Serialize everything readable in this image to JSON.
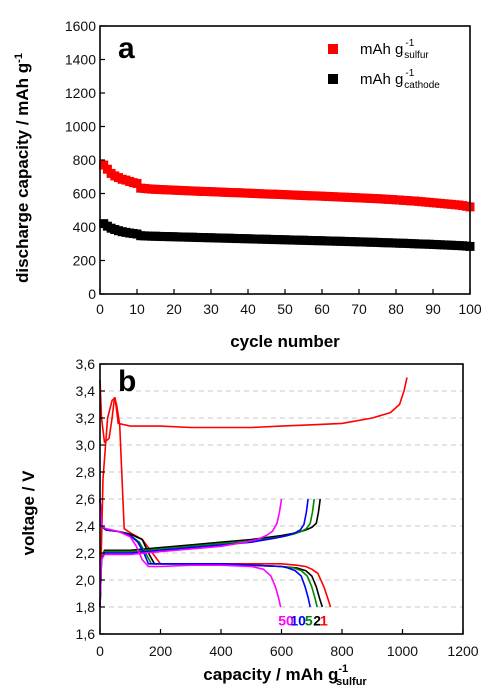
{
  "chart_data": [
    {
      "type": "scatter",
      "panel_label": "a",
      "xlabel": "cycle number",
      "ylabel": "discharge capacity / mAh g",
      "ylabel_sup": "-1",
      "xlim": [
        0,
        100
      ],
      "ylim": [
        0,
        1600
      ],
      "xticks": [
        "0",
        "10",
        "20",
        "30",
        "40",
        "50",
        "60",
        "70",
        "80",
        "90",
        "100"
      ],
      "yticks": [
        "0",
        "200",
        "400",
        "600",
        "800",
        "1000",
        "1200",
        "1400",
        "1600"
      ],
      "legend_position": "top-right",
      "series": [
        {
          "name_main": "mAh g",
          "name_sup": "-1",
          "name_sub": "sulfur",
          "color": "#ff0000",
          "x": [
            1,
            2,
            3,
            4,
            5,
            6,
            7,
            8,
            9,
            10,
            11,
            12,
            13,
            14,
            15,
            16,
            17,
            18,
            19,
            20,
            21,
            22,
            23,
            24,
            25,
            26,
            27,
            28,
            29,
            30,
            31,
            32,
            33,
            34,
            35,
            36,
            37,
            38,
            39,
            40,
            41,
            42,
            43,
            44,
            45,
            46,
            47,
            48,
            49,
            50,
            51,
            52,
            53,
            54,
            55,
            56,
            57,
            58,
            59,
            60,
            61,
            62,
            63,
            64,
            65,
            66,
            67,
            68,
            69,
            70,
            71,
            72,
            73,
            74,
            75,
            76,
            77,
            78,
            79,
            80,
            81,
            82,
            83,
            84,
            85,
            86,
            87,
            88,
            89,
            90,
            91,
            92,
            93,
            94,
            95,
            96,
            97,
            98,
            99,
            100
          ],
          "values": [
            770,
            745,
            720,
            705,
            695,
            685,
            680,
            672,
            665,
            660,
            632,
            630,
            628,
            626,
            625,
            624,
            623,
            622,
            621,
            620,
            619,
            618,
            617,
            616,
            615,
            614,
            613,
            612,
            612,
            611,
            610,
            609,
            608,
            607,
            606,
            605,
            605,
            604,
            603,
            602,
            601,
            600,
            599,
            598,
            597,
            596,
            596,
            595,
            594,
            593,
            592,
            591,
            590,
            589,
            588,
            587,
            586,
            586,
            585,
            584,
            583,
            582,
            581,
            580,
            579,
            578,
            577,
            576,
            575,
            574,
            573,
            572,
            571,
            570,
            569,
            568,
            566,
            565,
            564,
            562,
            561,
            559,
            558,
            556,
            555,
            553,
            551,
            549,
            547,
            545,
            543,
            541,
            539,
            537,
            535,
            533,
            531,
            528,
            524,
            520
          ]
        },
        {
          "name_main": "mAh g",
          "name_sup": "-1",
          "name_sub": "cathode",
          "color": "#000000",
          "x": [
            1,
            2,
            3,
            4,
            5,
            6,
            7,
            8,
            9,
            10,
            11,
            12,
            13,
            14,
            15,
            16,
            17,
            18,
            19,
            20,
            21,
            22,
            23,
            24,
            25,
            26,
            27,
            28,
            29,
            30,
            31,
            32,
            33,
            34,
            35,
            36,
            37,
            38,
            39,
            40,
            41,
            42,
            43,
            44,
            45,
            46,
            47,
            48,
            49,
            50,
            51,
            52,
            53,
            54,
            55,
            56,
            57,
            58,
            59,
            60,
            61,
            62,
            63,
            64,
            65,
            66,
            67,
            68,
            69,
            70,
            71,
            72,
            73,
            74,
            75,
            76,
            77,
            78,
            79,
            80,
            81,
            82,
            83,
            84,
            85,
            86,
            87,
            88,
            89,
            90,
            91,
            92,
            93,
            94,
            95,
            96,
            97,
            98,
            99,
            100
          ],
          "values": [
            420,
            405,
            393,
            385,
            378,
            372,
            368,
            364,
            361,
            358,
            348,
            347,
            346,
            345,
            345,
            344,
            343,
            343,
            342,
            342,
            341,
            340,
            340,
            339,
            339,
            338,
            337,
            337,
            336,
            336,
            335,
            334,
            334,
            333,
            333,
            332,
            331,
            331,
            330,
            330,
            329,
            328,
            328,
            327,
            327,
            326,
            325,
            325,
            324,
            324,
            323,
            322,
            322,
            321,
            321,
            320,
            319,
            319,
            318,
            318,
            317,
            316,
            316,
            315,
            315,
            314,
            313,
            313,
            312,
            311,
            311,
            310,
            309,
            309,
            308,
            307,
            306,
            306,
            305,
            304,
            303,
            303,
            302,
            301,
            300,
            299,
            298,
            298,
            297,
            296,
            295,
            294,
            293,
            292,
            291,
            290,
            289,
            288,
            286,
            284
          ]
        }
      ]
    },
    {
      "type": "line",
      "panel_label": "b",
      "xlabel": "capacity / mAh g",
      "xlabel_sup": "-1",
      "xlabel_sub": "sulfur",
      "ylabel": "voltage / V",
      "xlim": [
        0,
        1200
      ],
      "ylim": [
        1.6,
        3.6
      ],
      "xticks": [
        "0",
        "200",
        "400",
        "600",
        "800",
        "1000",
        "1200"
      ],
      "yticks": [
        "1,6",
        "1,8",
        "2,0",
        "2,2",
        "2,4",
        "2,6",
        "2,8",
        "3,0",
        "3,2",
        "3,4",
        "3,6"
      ],
      "cycle_labels": [
        {
          "text": "50",
          "color": "#ff00ff",
          "x": 615
        },
        {
          "text": "10",
          "color": "#0000ff",
          "x": 655
        },
        {
          "text": "5",
          "color": "#008800",
          "x": 690
        },
        {
          "text": "2",
          "color": "#000000",
          "x": 718
        },
        {
          "text": "1",
          "color": "#ff0000",
          "x": 740
        }
      ],
      "series": [
        {
          "cycle": "1",
          "color": "#ff0000",
          "discharge": {
            "x": [
              0,
              5,
              15,
              30,
              40,
              48,
              55,
              65,
              80,
              100,
              140,
              200,
              300,
              400,
              500,
              600,
              650,
              680,
              700,
              720,
              740,
              755,
              762
            ],
            "y": [
              3.48,
              3.2,
              3.02,
              3.05,
              3.2,
              3.35,
              3.3,
              3.15,
              2.38,
              2.35,
              2.3,
              2.12,
              2.12,
              2.12,
              2.12,
              2.12,
              2.11,
              2.1,
              2.08,
              2.05,
              1.95,
              1.85,
              1.8
            ]
          },
          "charge": {
            "x": [
              0,
              10,
              25,
              40,
              50,
              60,
              100,
              200,
              300,
              400,
              500,
              600,
              700,
              800,
              900,
              960,
              990,
              1005,
              1015
            ],
            "y": [
              1.8,
              2.75,
              3.2,
              3.33,
              3.35,
              3.16,
              3.14,
              3.14,
              3.13,
              3.13,
              3.13,
              3.14,
              3.15,
              3.16,
              3.2,
              3.24,
              3.3,
              3.4,
              3.5
            ]
          }
        },
        {
          "cycle": "2",
          "color": "#000000",
          "discharge": {
            "x": [
              0,
              5,
              20,
              60,
              100,
              140,
              160,
              180,
              220,
              300,
              400,
              500,
              600,
              650,
              680,
              700,
              715,
              725,
              735
            ],
            "y": [
              2.6,
              2.4,
              2.37,
              2.36,
              2.34,
              2.3,
              2.2,
              2.12,
              2.12,
              2.12,
              2.12,
              2.11,
              2.1,
              2.09,
              2.07,
              2.03,
              1.95,
              1.87,
              1.8
            ]
          },
          "charge": {
            "x": [
              0,
              5,
              15,
              100,
              200,
              300,
              400,
              500,
              600,
              650,
              680,
              700,
              715,
              722,
              728
            ],
            "y": [
              1.8,
              2.15,
              2.22,
              2.22,
              2.24,
              2.26,
              2.28,
              2.3,
              2.33,
              2.35,
              2.37,
              2.39,
              2.42,
              2.5,
              2.6
            ]
          }
        },
        {
          "cycle": "5",
          "color": "#008800",
          "discharge": {
            "x": [
              0,
              5,
              20,
              60,
              100,
              130,
              150,
              170,
              210,
              300,
              400,
              500,
              600,
              640,
              665,
              685,
              700,
              710,
              718
            ],
            "y": [
              2.6,
              2.4,
              2.37,
              2.36,
              2.33,
              2.28,
              2.2,
              2.12,
              2.12,
              2.12,
              2.12,
              2.11,
              2.1,
              2.09,
              2.07,
              2.03,
              1.95,
              1.87,
              1.8
            ]
          },
          "charge": {
            "x": [
              0,
              5,
              15,
              100,
              200,
              300,
              400,
              500,
              600,
              640,
              665,
              682,
              695,
              702,
              708
            ],
            "y": [
              1.8,
              2.15,
              2.21,
              2.21,
              2.23,
              2.25,
              2.27,
              2.29,
              2.32,
              2.34,
              2.36,
              2.38,
              2.42,
              2.5,
              2.6
            ]
          }
        },
        {
          "cycle": "10",
          "color": "#0000ff",
          "discharge": {
            "x": [
              0,
              5,
              20,
              60,
              100,
              125,
              145,
              160,
              200,
              300,
              400,
              500,
              600,
              620,
              645,
              665,
              678,
              688,
              695
            ],
            "y": [
              2.6,
              2.4,
              2.37,
              2.36,
              2.33,
              2.28,
              2.2,
              2.12,
              2.12,
              2.12,
              2.12,
              2.11,
              2.1,
              2.09,
              2.07,
              2.03,
              1.95,
              1.87,
              1.8
            ]
          },
          "charge": {
            "x": [
              0,
              5,
              15,
              100,
              200,
              300,
              400,
              500,
              580,
              620,
              645,
              662,
              674,
              682,
              688
            ],
            "y": [
              1.8,
              2.15,
              2.2,
              2.2,
              2.22,
              2.24,
              2.26,
              2.28,
              2.31,
              2.33,
              2.35,
              2.37,
              2.41,
              2.5,
              2.6
            ]
          }
        },
        {
          "cycle": "50",
          "color": "#ff00ff",
          "discharge": {
            "x": [
              0,
              5,
              20,
              60,
              100,
              120,
              140,
              160,
              200,
              300,
              400,
              500,
              540,
              565,
              580,
              590,
              597
            ],
            "y": [
              2.6,
              2.4,
              2.38,
              2.36,
              2.32,
              2.25,
              2.15,
              2.1,
              2.1,
              2.11,
              2.11,
              2.1,
              2.08,
              2.03,
              1.95,
              1.87,
              1.8
            ]
          },
          "charge": {
            "x": [
              0,
              5,
              15,
              100,
              200,
              300,
              400,
              480,
              520,
              550,
              570,
              585,
              593,
              600
            ],
            "y": [
              1.8,
              2.15,
              2.19,
              2.19,
              2.21,
              2.23,
              2.25,
              2.28,
              2.3,
              2.33,
              2.36,
              2.42,
              2.5,
              2.6
            ]
          }
        }
      ]
    }
  ]
}
